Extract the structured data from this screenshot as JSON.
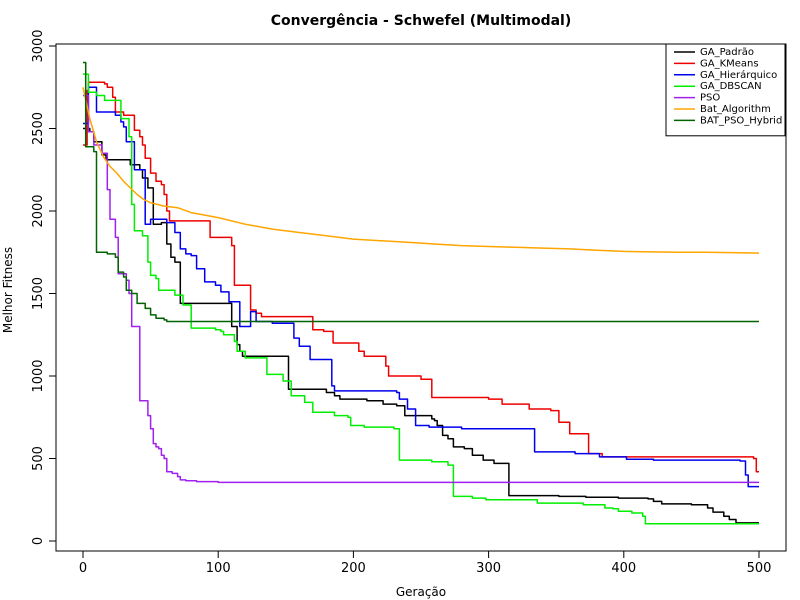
{
  "chart_data": {
    "type": "line",
    "title": "Convergência - Schwefel (Multimodal)",
    "xlabel": "Geração",
    "ylabel": "Melhor Fitness",
    "xlim": [
      0,
      500
    ],
    "ylim": [
      0,
      3000
    ],
    "xticks": [
      0,
      100,
      200,
      300,
      400,
      500
    ],
    "yticks": [
      0,
      500,
      1000,
      1500,
      2000,
      2500,
      3000
    ],
    "grid": false,
    "legend_position": "top-right",
    "series": [
      {
        "name": "GA_Padrão",
        "color": "#000000",
        "step": true,
        "points": [
          [
            0,
            2500
          ],
          [
            5,
            2480
          ],
          [
            8,
            2420
          ],
          [
            14,
            2340
          ],
          [
            17,
            2310
          ],
          [
            35,
            2280
          ],
          [
            42,
            2250
          ],
          [
            44,
            2200
          ],
          [
            48,
            2140
          ],
          [
            52,
            1920
          ],
          [
            58,
            1930
          ],
          [
            62,
            1800
          ],
          [
            65,
            1720
          ],
          [
            68,
            1690
          ],
          [
            72,
            1440
          ],
          [
            110,
            1300
          ],
          [
            114,
            1190
          ],
          [
            116,
            1150
          ],
          [
            118,
            1120
          ],
          [
            152,
            920
          ],
          [
            170,
            920
          ],
          [
            180,
            900
          ],
          [
            186,
            880
          ],
          [
            190,
            860
          ],
          [
            210,
            850
          ],
          [
            222,
            830
          ],
          [
            232,
            820
          ],
          [
            238,
            760
          ],
          [
            258,
            740
          ],
          [
            260,
            730
          ],
          [
            262,
            700
          ],
          [
            266,
            640
          ],
          [
            270,
            620
          ],
          [
            274,
            570
          ],
          [
            282,
            560
          ],
          [
            288,
            520
          ],
          [
            296,
            490
          ],
          [
            304,
            470
          ],
          [
            310,
            470
          ],
          [
            315,
            275
          ],
          [
            340,
            275
          ],
          [
            352,
            270
          ],
          [
            372,
            265
          ],
          [
            396,
            260
          ],
          [
            418,
            255
          ],
          [
            422,
            240
          ],
          [
            428,
            225
          ],
          [
            450,
            220
          ],
          [
            462,
            200
          ],
          [
            466,
            175
          ],
          [
            474,
            150
          ],
          [
            478,
            130
          ],
          [
            483,
            110
          ],
          [
            500,
            110
          ]
        ]
      },
      {
        "name": "GA_KMeans",
        "color": "#ee0000",
        "step": true,
        "points": [
          [
            0,
            2400
          ],
          [
            3,
            2730
          ],
          [
            4,
            2780
          ],
          [
            16,
            2770
          ],
          [
            18,
            2750
          ],
          [
            22,
            2690
          ],
          [
            24,
            2600
          ],
          [
            30,
            2580
          ],
          [
            38,
            2490
          ],
          [
            42,
            2450
          ],
          [
            44,
            2400
          ],
          [
            46,
            2320
          ],
          [
            50,
            2230
          ],
          [
            54,
            2180
          ],
          [
            58,
            2160
          ],
          [
            60,
            2100
          ],
          [
            62,
            2000
          ],
          [
            64,
            1940
          ],
          [
            92,
            1940
          ],
          [
            94,
            1840
          ],
          [
            110,
            1790
          ],
          [
            112,
            1550
          ],
          [
            124,
            1400
          ],
          [
            128,
            1380
          ],
          [
            132,
            1360
          ],
          [
            170,
            1280
          ],
          [
            178,
            1270
          ],
          [
            185,
            1200
          ],
          [
            204,
            1150
          ],
          [
            208,
            1120
          ],
          [
            224,
            1060
          ],
          [
            226,
            1000
          ],
          [
            250,
            980
          ],
          [
            258,
            870
          ],
          [
            300,
            860
          ],
          [
            310,
            830
          ],
          [
            330,
            800
          ],
          [
            346,
            790
          ],
          [
            352,
            720
          ],
          [
            360,
            650
          ],
          [
            374,
            530
          ],
          [
            384,
            510
          ],
          [
            430,
            510
          ],
          [
            496,
            500
          ],
          [
            498,
            420
          ],
          [
            500,
            420
          ]
        ]
      },
      {
        "name": "GA_Hierárquico",
        "color": "#0000ee",
        "step": true,
        "points": [
          [
            0,
            2530
          ],
          [
            4,
            2750
          ],
          [
            10,
            2600
          ],
          [
            22,
            2600
          ],
          [
            24,
            2580
          ],
          [
            28,
            2540
          ],
          [
            30,
            2510
          ],
          [
            32,
            2420
          ],
          [
            38,
            2250
          ],
          [
            46,
            1920
          ],
          [
            50,
            1950
          ],
          [
            62,
            1930
          ],
          [
            68,
            1870
          ],
          [
            72,
            1770
          ],
          [
            76,
            1740
          ],
          [
            80,
            1730
          ],
          [
            84,
            1650
          ],
          [
            90,
            1570
          ],
          [
            98,
            1550
          ],
          [
            102,
            1510
          ],
          [
            108,
            1450
          ],
          [
            116,
            1300
          ],
          [
            124,
            1390
          ],
          [
            128,
            1330
          ],
          [
            140,
            1320
          ],
          [
            156,
            1230
          ],
          [
            160,
            1180
          ],
          [
            168,
            1100
          ],
          [
            184,
            940
          ],
          [
            186,
            910
          ],
          [
            232,
            900
          ],
          [
            234,
            860
          ],
          [
            240,
            800
          ],
          [
            246,
            700
          ],
          [
            256,
            690
          ],
          [
            270,
            690
          ],
          [
            280,
            680
          ],
          [
            332,
            680
          ],
          [
            334,
            540
          ],
          [
            354,
            540
          ],
          [
            364,
            530
          ],
          [
            382,
            510
          ],
          [
            402,
            495
          ],
          [
            422,
            490
          ],
          [
            486,
            485
          ],
          [
            490,
            400
          ],
          [
            492,
            330
          ],
          [
            500,
            330
          ]
        ]
      },
      {
        "name": "GA_DBSCAN",
        "color": "#00ee00",
        "step": true,
        "points": [
          [
            0,
            2830
          ],
          [
            4,
            2720
          ],
          [
            10,
            2700
          ],
          [
            16,
            2670
          ],
          [
            24,
            2670
          ],
          [
            28,
            2560
          ],
          [
            34,
            2450
          ],
          [
            36,
            2040
          ],
          [
            38,
            1880
          ],
          [
            44,
            1850
          ],
          [
            48,
            1690
          ],
          [
            50,
            1610
          ],
          [
            54,
            1590
          ],
          [
            56,
            1520
          ],
          [
            68,
            1490
          ],
          [
            74,
            1430
          ],
          [
            80,
            1290
          ],
          [
            98,
            1280
          ],
          [
            102,
            1270
          ],
          [
            104,
            1250
          ],
          [
            112,
            1210
          ],
          [
            114,
            1150
          ],
          [
            120,
            1110
          ],
          [
            136,
            1010
          ],
          [
            148,
            970
          ],
          [
            154,
            880
          ],
          [
            164,
            840
          ],
          [
            170,
            780
          ],
          [
            178,
            780
          ],
          [
            186,
            760
          ],
          [
            196,
            750
          ],
          [
            198,
            700
          ],
          [
            208,
            690
          ],
          [
            214,
            690
          ],
          [
            230,
            680
          ],
          [
            234,
            490
          ],
          [
            258,
            480
          ],
          [
            270,
            460
          ],
          [
            274,
            270
          ],
          [
            288,
            260
          ],
          [
            298,
            250
          ],
          [
            326,
            250
          ],
          [
            336,
            230
          ],
          [
            370,
            220
          ],
          [
            386,
            200
          ],
          [
            392,
            195
          ],
          [
            396,
            180
          ],
          [
            406,
            170
          ],
          [
            414,
            150
          ],
          [
            416,
            105
          ],
          [
            500,
            105
          ]
        ]
      },
      {
        "name": "PSO",
        "color": "#a020f0",
        "step": true,
        "points": [
          [
            0,
            2700
          ],
          [
            4,
            2480
          ],
          [
            8,
            2400
          ],
          [
            14,
            2350
          ],
          [
            18,
            2130
          ],
          [
            20,
            1950
          ],
          [
            24,
            1840
          ],
          [
            26,
            1620
          ],
          [
            30,
            1620
          ],
          [
            32,
            1580
          ],
          [
            34,
            1500
          ],
          [
            36,
            1300
          ],
          [
            40,
            1300
          ],
          [
            42,
            850
          ],
          [
            48,
            760
          ],
          [
            50,
            680
          ],
          [
            52,
            590
          ],
          [
            54,
            570
          ],
          [
            56,
            560
          ],
          [
            58,
            520
          ],
          [
            60,
            500
          ],
          [
            62,
            420
          ],
          [
            66,
            410
          ],
          [
            70,
            390
          ],
          [
            72,
            370
          ],
          [
            76,
            365
          ],
          [
            84,
            360
          ],
          [
            100,
            355
          ],
          [
            200,
            355
          ],
          [
            300,
            355
          ],
          [
            400,
            355
          ],
          [
            500,
            355
          ]
        ]
      },
      {
        "name": "Bat_Algorithm",
        "color": "#ffa500",
        "step": false,
        "points": [
          [
            0,
            2750
          ],
          [
            5,
            2560
          ],
          [
            10,
            2420
          ],
          [
            15,
            2330
          ],
          [
            20,
            2270
          ],
          [
            25,
            2230
          ],
          [
            30,
            2180
          ],
          [
            35,
            2140
          ],
          [
            40,
            2100
          ],
          [
            45,
            2070
          ],
          [
            50,
            2050
          ],
          [
            55,
            2040
          ],
          [
            60,
            2030
          ],
          [
            70,
            2020
          ],
          [
            80,
            1990
          ],
          [
            100,
            1960
          ],
          [
            120,
            1920
          ],
          [
            140,
            1890
          ],
          [
            160,
            1870
          ],
          [
            180,
            1850
          ],
          [
            200,
            1830
          ],
          [
            220,
            1820
          ],
          [
            240,
            1810
          ],
          [
            260,
            1800
          ],
          [
            280,
            1790
          ],
          [
            300,
            1785
          ],
          [
            320,
            1780
          ],
          [
            340,
            1775
          ],
          [
            360,
            1770
          ],
          [
            380,
            1762
          ],
          [
            400,
            1755
          ],
          [
            420,
            1752
          ],
          [
            440,
            1750
          ],
          [
            460,
            1750
          ],
          [
            480,
            1748
          ],
          [
            500,
            1745
          ]
        ]
      },
      {
        "name": "BAT_PSO_Hybrid",
        "color": "#006400",
        "step": true,
        "points": [
          [
            0,
            2900
          ],
          [
            2,
            2390
          ],
          [
            8,
            2360
          ],
          [
            10,
            1750
          ],
          [
            18,
            1740
          ],
          [
            24,
            1720
          ],
          [
            26,
            1630
          ],
          [
            30,
            1600
          ],
          [
            32,
            1520
          ],
          [
            36,
            1500
          ],
          [
            40,
            1440
          ],
          [
            46,
            1410
          ],
          [
            50,
            1370
          ],
          [
            54,
            1350
          ],
          [
            60,
            1340
          ],
          [
            62,
            1330
          ],
          [
            100,
            1330
          ],
          [
            200,
            1330
          ],
          [
            300,
            1330
          ],
          [
            400,
            1330
          ],
          [
            500,
            1330
          ]
        ]
      }
    ]
  }
}
